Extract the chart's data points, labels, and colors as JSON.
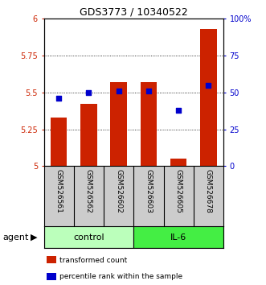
{
  "title": "GDS3773 / 10340522",
  "samples": [
    "GSM526561",
    "GSM526562",
    "GSM526602",
    "GSM526603",
    "GSM526605",
    "GSM526678"
  ],
  "bar_values": [
    5.33,
    5.42,
    5.57,
    5.57,
    5.05,
    5.93
  ],
  "percentile_values": [
    46,
    50,
    51,
    51,
    38,
    55
  ],
  "bar_color": "#cc2200",
  "dot_color": "#0000cc",
  "ylim_left": [
    5.0,
    6.0
  ],
  "ylim_right": [
    0,
    100
  ],
  "yticks_left": [
    5.0,
    5.25,
    5.5,
    5.75,
    6.0
  ],
  "ytick_labels_left": [
    "5",
    "5.25",
    "5.5",
    "5.75",
    "6"
  ],
  "yticks_right": [
    0,
    25,
    50,
    75,
    100
  ],
  "ytick_labels_right": [
    "0",
    "25",
    "50",
    "75",
    "100%"
  ],
  "hgrid_values": [
    5.25,
    5.5,
    5.75
  ],
  "groups": [
    {
      "label": "control",
      "indices": [
        0,
        1,
        2
      ],
      "color": "#bbffbb"
    },
    {
      "label": "IL-6",
      "indices": [
        3,
        4,
        5
      ],
      "color": "#44ee44"
    }
  ],
  "agent_label": "agent",
  "legend_items": [
    {
      "label": "transformed count",
      "color": "#cc2200"
    },
    {
      "label": "percentile rank within the sample",
      "color": "#0000cc"
    }
  ],
  "tick_label_color_left": "#cc2200",
  "tick_label_color_right": "#0000cc",
  "bar_bottom": 5.0,
  "bar_width": 0.55
}
